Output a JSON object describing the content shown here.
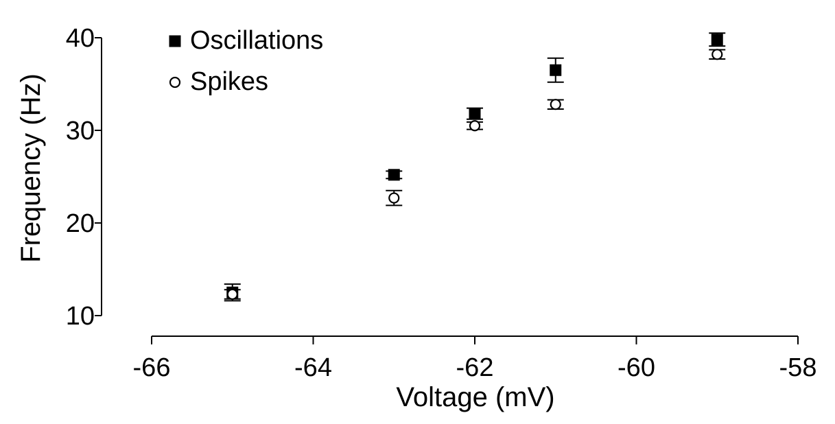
{
  "chart_data": {
    "type": "scatter",
    "title": "",
    "xlabel": "Voltage (mV)",
    "ylabel": "Frequency (Hz)",
    "xlim": [
      -66,
      -58
    ],
    "ylim": [
      10,
      40
    ],
    "x_ticks": [
      -66,
      -64,
      -62,
      -60,
      -58
    ],
    "x_tick_labels": [
      "-66",
      "-64",
      "-62",
      "-60",
      "-58"
    ],
    "y_ticks": [
      10,
      20,
      30,
      40
    ],
    "y_tick_labels": [
      "10",
      "20",
      "30",
      "40"
    ],
    "grid": false,
    "legend_position": "top-left",
    "series": [
      {
        "name": "Oscillations",
        "marker": "filled-square",
        "color": "#000000",
        "x": [
          -65,
          -63,
          -62,
          -61,
          -59
        ],
        "y": [
          12.5,
          25.2,
          31.8,
          36.5,
          39.8
        ],
        "error": [
          0.9,
          0.4,
          0.6,
          1.3,
          0.7
        ]
      },
      {
        "name": "Spikes",
        "marker": "open-circle",
        "color": "#000000",
        "x": [
          -65,
          -63,
          -62,
          -61,
          -59
        ],
        "y": [
          12.3,
          22.7,
          30.5,
          32.8,
          38.2
        ],
        "error": [
          0.5,
          0.8,
          0.4,
          0.5,
          0.5
        ]
      }
    ]
  }
}
